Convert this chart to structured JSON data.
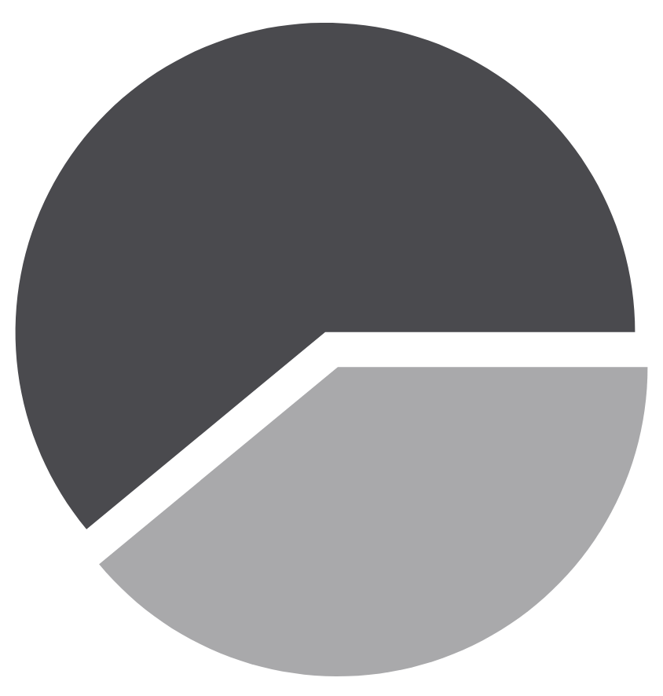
{
  "chart_data": {
    "type": "pie",
    "categories": [
      null,
      null
    ],
    "values": [
      61,
      39
    ],
    "colors": [
      "#4a4a4e",
      "#a9a9ab"
    ]
  }
}
